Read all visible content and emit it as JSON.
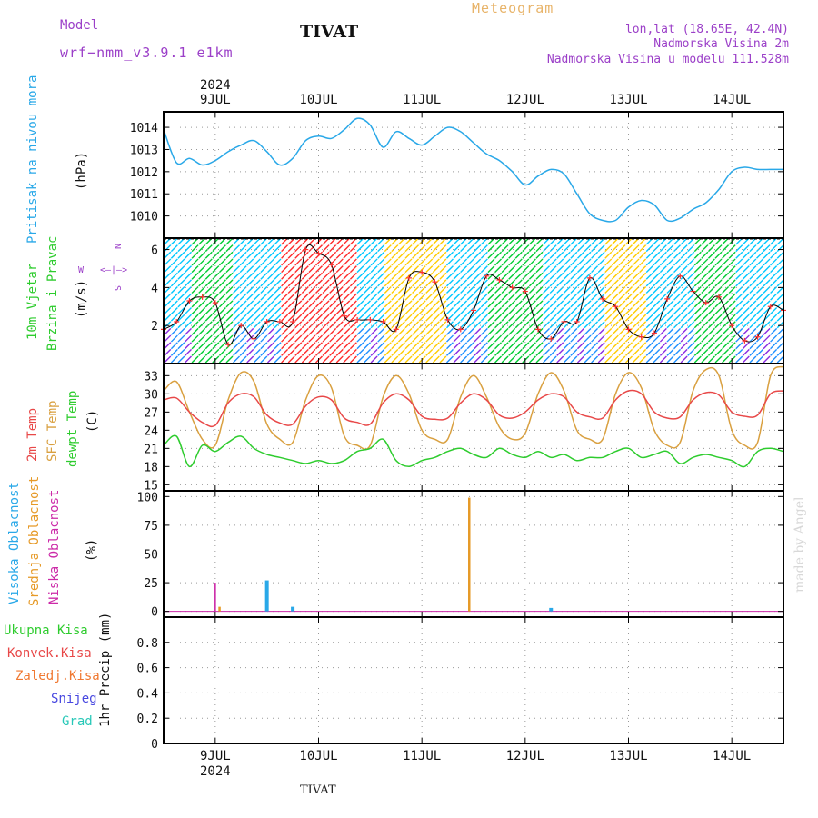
{
  "header": {
    "model_label": "Model",
    "model_name": "wrf−nmm_v3.9.1  e1km",
    "station": "TIVAT",
    "meteogram": "Meteogram",
    "lonlat": "lon,lat (18.65E, 42.4N)",
    "elevation": "Nadmorska Visina 2m",
    "model_elevation": "Nadmorska Visina u modelu 111.528m"
  },
  "footer": {
    "station": "TIVAT",
    "credit": "made by Angel"
  },
  "colors": {
    "pressure": "#29a8e8",
    "temp2m": "#e84848",
    "sfc": "#d9a040",
    "dewpt": "#2ecc2e",
    "cloud_high": "#29a8e8",
    "cloud_mid": "#e69a28",
    "cloud_low": "#cc2aa8",
    "rain_total": "#2ecc2e",
    "rain_conv": "#e84848",
    "rain_frz": "#f07830",
    "snow": "#4848e0",
    "hail": "#28c8b8"
  },
  "chart_data": [
    {
      "type": "line",
      "panel": "pressure",
      "title": "",
      "ylabel_parts": [
        "Pritisak na nivou mora",
        "(hPa)"
      ],
      "ylim": [
        1009.0,
        1014.7
      ],
      "yticks": [
        1010,
        1011,
        1012,
        1013,
        1014
      ],
      "xlim_days": [
        "2024-07-08T12",
        "2024-07-14T12"
      ],
      "xticks": [
        "9JUL",
        "10JUL",
        "11JUL",
        "12JUL",
        "13JUL",
        "14JUL"
      ],
      "year": "2024",
      "grid": true,
      "series": [
        {
          "name": "Pritisak",
          "x_hours": [
            0,
            3,
            6,
            9,
            12,
            15,
            18,
            21,
            24,
            27,
            30,
            33,
            36,
            39,
            42,
            45,
            48,
            51,
            54,
            57,
            60,
            63,
            66,
            69,
            72,
            75,
            78,
            81,
            84,
            87,
            90,
            93,
            96,
            99,
            102,
            105,
            108,
            111,
            114,
            117,
            120,
            123,
            126,
            129,
            132,
            135,
            138,
            141,
            144
          ],
          "values": [
            1013.9,
            1012.4,
            1012.6,
            1012.3,
            1012.5,
            1012.9,
            1013.2,
            1013.4,
            1012.9,
            1012.3,
            1012.6,
            1013.4,
            1013.6,
            1013.5,
            1013.9,
            1014.4,
            1014.1,
            1013.1,
            1013.8,
            1013.5,
            1013.2,
            1013.6,
            1014.0,
            1013.8,
            1013.3,
            1012.8,
            1012.5,
            1012.0,
            1011.4,
            1011.8,
            1012.1,
            1011.9,
            1011.0,
            1010.1,
            1009.8,
            1009.8,
            1010.4,
            1010.7,
            1010.5,
            1009.8,
            1009.9,
            1010.3,
            1010.6,
            1011.2,
            1012.0,
            1012.2,
            1012.1,
            1012.1,
            1012.1
          ]
        }
      ]
    },
    {
      "type": "line",
      "panel": "wind",
      "ylabel_parts": [
        "10m Vjetar",
        "Brzina i Pravac",
        "(m/s)"
      ],
      "compass": [
        "N",
        "W",
        "E",
        "S"
      ],
      "ylim": [
        0,
        6.6
      ],
      "yticks": [
        2,
        4,
        6
      ],
      "grid": true,
      "series": [
        {
          "name": "Brzina",
          "x_hours": [
            0,
            3,
            6,
            9,
            12,
            15,
            18,
            21,
            24,
            27,
            30,
            33,
            36,
            39,
            42,
            45,
            48,
            51,
            54,
            57,
            60,
            63,
            66,
            69,
            72,
            75,
            78,
            81,
            84,
            87,
            90,
            93,
            96,
            99,
            102,
            105,
            108,
            111,
            114,
            117,
            120,
            123,
            126,
            129,
            132,
            135,
            138,
            141,
            144
          ],
          "values": [
            1.8,
            2.2,
            3.3,
            3.5,
            3.2,
            1.0,
            2.0,
            1.3,
            2.2,
            2.2,
            2.2,
            6.0,
            5.8,
            5.2,
            2.5,
            2.3,
            2.3,
            2.2,
            1.8,
            4.5,
            4.8,
            4.3,
            2.3,
            1.8,
            2.8,
            4.6,
            4.4,
            4.0,
            3.8,
            1.8,
            1.3,
            2.2,
            2.2,
            4.5,
            3.4,
            3.0,
            1.8,
            1.4,
            1.6,
            3.4,
            4.6,
            3.8,
            3.2,
            3.5,
            2.0,
            1.2,
            1.4,
            3.0,
            2.8
          ]
        }
      ],
      "direction_bands": [
        {
          "from_hours": 0,
          "to_hours": 18,
          "dir": "N",
          "band_color": "#00c8ff"
        },
        {
          "from_hours": 6,
          "to_hours": 16,
          "dir": "NE",
          "band_color": "#00cc33"
        },
        {
          "from_hours": 28,
          "to_hours": 44,
          "dir": "NE",
          "band_color": "#ff2a2a"
        },
        {
          "from_hours": 52,
          "to_hours": 66,
          "dir": "NE",
          "band_color": "#ffcc00"
        },
        {
          "from_hours": 76,
          "to_hours": 88,
          "dir": "NE",
          "band_color": "#00cc33"
        },
        {
          "from_hours": 102,
          "to_hours": 112,
          "dir": "NE",
          "band_color": "#ffcc00"
        },
        {
          "from_hours": 124,
          "to_hours": 132,
          "dir": "NE",
          "band_color": "#00cc33"
        }
      ]
    },
    {
      "type": "line",
      "panel": "temperature",
      "ylabel_parts": [
        "2m Temp",
        "SFC Temp",
        "dewpt Temp",
        "(C)"
      ],
      "ylim": [
        14.0,
        35.0
      ],
      "yticks": [
        15,
        18,
        21,
        24,
        27,
        30,
        33
      ],
      "grid": true,
      "series": [
        {
          "name": "2m Temp",
          "x_hours": [
            0,
            3,
            6,
            9,
            12,
            15,
            18,
            21,
            24,
            27,
            30,
            33,
            36,
            39,
            42,
            45,
            48,
            51,
            54,
            57,
            60,
            63,
            66,
            69,
            72,
            75,
            78,
            81,
            84,
            87,
            90,
            93,
            96,
            99,
            102,
            105,
            108,
            111,
            114,
            117,
            120,
            123,
            126,
            129,
            132,
            135,
            138,
            141,
            144
          ],
          "values": [
            29.0,
            29.3,
            27.0,
            25.3,
            24.8,
            28.5,
            30.0,
            29.5,
            26.5,
            25.2,
            25.0,
            28.0,
            29.5,
            29.0,
            26.0,
            25.3,
            25.0,
            28.5,
            30.0,
            29.0,
            26.3,
            25.8,
            26.0,
            28.5,
            30.0,
            29.0,
            26.5,
            26.0,
            27.0,
            29.0,
            30.0,
            29.5,
            27.0,
            26.2,
            26.0,
            29.0,
            30.5,
            30.0,
            27.0,
            26.0,
            26.2,
            29.0,
            30.2,
            29.8,
            27.0,
            26.3,
            26.5,
            30.0,
            30.5
          ]
        },
        {
          "name": "SFC Temp",
          "x_hours": [
            0,
            3,
            6,
            9,
            12,
            15,
            18,
            21,
            24,
            27,
            30,
            33,
            36,
            39,
            42,
            45,
            48,
            51,
            54,
            57,
            60,
            63,
            66,
            69,
            72,
            75,
            78,
            81,
            84,
            87,
            90,
            93,
            96,
            99,
            102,
            105,
            108,
            111,
            114,
            117,
            120,
            123,
            126,
            129,
            132,
            135,
            138,
            141,
            144
          ],
          "values": [
            30.5,
            32.0,
            27.0,
            22.5,
            21.5,
            29.0,
            33.5,
            32.0,
            25.0,
            22.5,
            22.0,
            29.0,
            33.0,
            31.0,
            23.0,
            21.5,
            21.5,
            29.5,
            33.0,
            30.0,
            24.0,
            22.5,
            22.5,
            29.5,
            33.0,
            29.5,
            24.5,
            22.5,
            23.5,
            30.0,
            33.5,
            30.5,
            24.0,
            22.5,
            22.5,
            30.0,
            33.5,
            31.0,
            24.0,
            21.5,
            22.0,
            30.5,
            34.0,
            33.0,
            24.0,
            21.5,
            22.0,
            33.0,
            34.5
          ]
        },
        {
          "name": "dewpt Temp",
          "x_hours": [
            0,
            3,
            6,
            9,
            12,
            15,
            18,
            21,
            24,
            27,
            30,
            33,
            36,
            39,
            42,
            45,
            48,
            51,
            54,
            57,
            60,
            63,
            66,
            69,
            72,
            75,
            78,
            81,
            84,
            87,
            90,
            93,
            96,
            99,
            102,
            105,
            108,
            111,
            114,
            117,
            120,
            123,
            126,
            129,
            132,
            135,
            138,
            141,
            144
          ],
          "values": [
            21.5,
            23.0,
            18.0,
            21.5,
            20.5,
            22.0,
            23.0,
            21.0,
            20.0,
            19.5,
            19.0,
            18.5,
            19.0,
            18.5,
            19.0,
            20.5,
            21.0,
            22.5,
            19.0,
            18.0,
            19.0,
            19.5,
            20.5,
            21.0,
            20.0,
            19.5,
            21.0,
            20.0,
            19.5,
            20.5,
            19.5,
            20.0,
            19.0,
            19.5,
            19.5,
            20.5,
            21.0,
            19.5,
            20.0,
            20.5,
            18.5,
            19.5,
            20.0,
            19.5,
            19.0,
            18.0,
            20.5,
            21.0,
            20.5
          ]
        }
      ]
    },
    {
      "type": "bar",
      "panel": "cloud",
      "ylabel_parts": [
        "Visoka Oblacnost",
        "Srednja Oblacnost",
        "Niska Oblacnost",
        "(%)"
      ],
      "ylim": [
        -5,
        105
      ],
      "yticks": [
        0,
        25,
        50,
        75,
        100
      ],
      "grid": true,
      "series": [
        {
          "name": "Visoka Oblacnost",
          "x_hours": [
            24,
            30,
            90
          ],
          "values": [
            27,
            4,
            3
          ]
        },
        {
          "name": "Srednja Oblacnost",
          "x_hours": [
            13,
            71
          ],
          "values": [
            4,
            99
          ]
        },
        {
          "name": "Niska Oblacnost",
          "x_hours": [
            12
          ],
          "values": [
            25
          ]
        }
      ]
    },
    {
      "type": "bar",
      "panel": "precip",
      "ylabel_parts": [
        "1hr Precip (mm)"
      ],
      "legend": [
        "Ukupna Kisa",
        "Konvek.Kisa",
        "Zaledj.Kisa",
        "Snijeg",
        "Grad"
      ],
      "ylim": [
        0,
        1.0
      ],
      "yticks": [
        "0",
        "0.2",
        "0.4",
        "0.6",
        "0.8"
      ],
      "grid": true,
      "series": []
    }
  ]
}
